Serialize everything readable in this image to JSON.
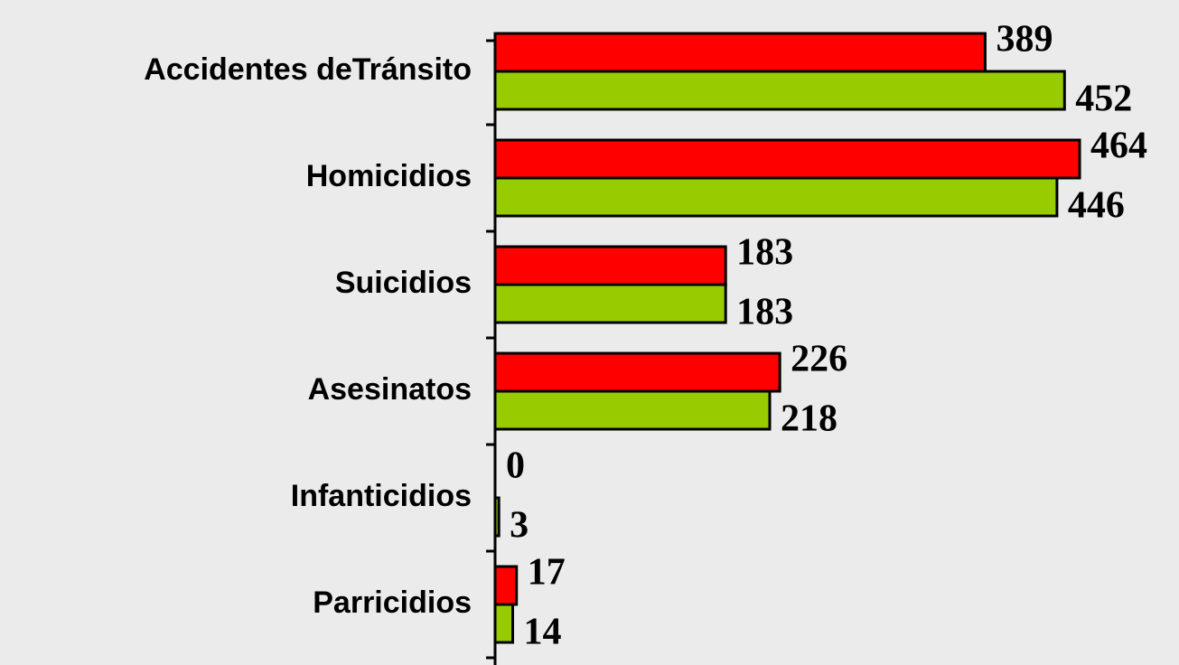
{
  "chart_data": {
    "type": "bar",
    "orientation": "horizontal",
    "categories": [
      "Accidentes deTránsito",
      "Homicidios",
      "Suicidios",
      "Asesinatos",
      "Infanticidios",
      "Parricidios"
    ],
    "series": [
      {
        "color": "#ff0000",
        "values": [
          389,
          464,
          183,
          226,
          0,
          17
        ]
      },
      {
        "color": "#99cc00",
        "values": [
          452,
          446,
          183,
          218,
          3,
          14
        ]
      }
    ],
    "xlim": [
      0,
      540
    ]
  }
}
